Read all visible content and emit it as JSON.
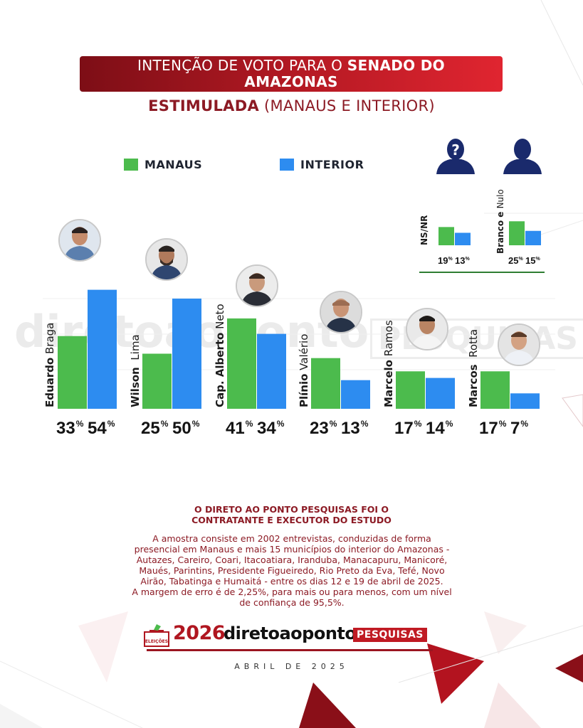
{
  "title": {
    "line1_regular": "INTENÇÃO DE VOTO PARA O ",
    "line1_bold": "SENADO DO",
    "line2_bold": "AMAZONAS"
  },
  "subtitle": {
    "bold": "ESTIMULADA",
    "regular": " (MANAUS E INTERIOR)"
  },
  "legend": {
    "manaus": "MANAUS",
    "interior": "INTERIOR"
  },
  "colors": {
    "manaus": "#4cbb4d",
    "interior": "#2d8cf0",
    "brand_red": "#b01620",
    "dark_red": "#7d0e16",
    "icon_navy": "#1a2a6c"
  },
  "chart_data": {
    "type": "bar",
    "categories": [
      {
        "first": "Eduardo",
        "last": "Braga"
      },
      {
        "first": "Wilson",
        "last": "Lima"
      },
      {
        "first": "Cap. Alberto",
        "last": "Neto"
      },
      {
        "first": "Plínio",
        "last": "Valério"
      },
      {
        "first": "Marcelo",
        "last": "Ramos"
      },
      {
        "first": "Marcos",
        "last": "Rotta"
      }
    ],
    "series": [
      {
        "name": "MANAUS",
        "values": [
          33,
          25,
          41,
          23,
          17,
          17
        ]
      },
      {
        "name": "INTERIOR",
        "values": [
          54,
          50,
          34,
          13,
          14,
          7
        ]
      }
    ],
    "unit": "%",
    "ylim": [
      0,
      60
    ]
  },
  "mini_chart": {
    "type": "bar",
    "categories": [
      {
        "first": "NS/NR",
        "last": ""
      },
      {
        "first": "Branco e",
        "last": "Nulo"
      }
    ],
    "series": [
      {
        "name": "MANAUS",
        "values": [
          19,
          25
        ]
      },
      {
        "name": "INTERIOR",
        "values": [
          13,
          15
        ]
      }
    ],
    "unit": "%",
    "icons": [
      "unknown-person-icon",
      "person-icon"
    ]
  },
  "info": {
    "title_line1": "O DIRETO AO PONTO PESQUISAS FOI O",
    "title_line2": "CONTRATANTE E EXECUTOR DO ESTUDO",
    "body": [
      "A amostra consiste em 2002 entrevistas, conduzidas de forma",
      "presencial em Manaus e mais 15 municípios do interior do Amazonas -",
      "Autazes, Careiro, Coari, Itacoatiara, Iranduba, Manacapuru, Manicoré,",
      "Maués, Parintins, Presidente Figueiredo, Rio Preto da Eva, Tefé, Novo",
      "Airão, Tabatinga e Humaitá - entre os dias 12 e 19 de abril de 2025.",
      "A margem de erro é de 2,25%, para mais ou para menos, com um nível",
      "de confiança de 95,5%."
    ]
  },
  "footer": {
    "badge": "ELEIÇÕES",
    "year": "2026",
    "brand": "diretoaoponto",
    "pesquisas": "PESQUISAS",
    "date": "ABRIL DE 2025"
  },
  "watermark": {
    "main": "diretoaoponto",
    "tag": "PESQUISAS"
  }
}
